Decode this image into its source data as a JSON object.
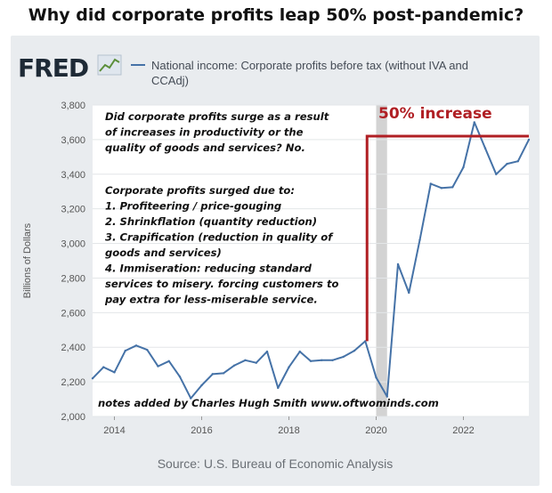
{
  "title": "Why did corporate profits leap 50% post-pandemic?",
  "fred": {
    "logo": "FRED",
    "logo_icon": "line-chart-icon",
    "legend_line1": "National income: Corporate profits before tax (without IVA and",
    "legend_line2": "CCAdj)",
    "series_color": "#4572a7"
  },
  "source": "Source: U.S. Bureau of Economic Analysis",
  "annotations": {
    "question": [
      "Did corporate profits surge as a result",
      "of increases in productivity or the",
      "quality of goods and services? No."
    ],
    "reasons": [
      "Corporate profits surged due to:",
      "1. Profiteering / price-gouging",
      "2. Shrinkflation (quantity reduction)",
      "3. Crapification (reduction in quality of",
      "goods and services)",
      "4. Immiseration: reducing standard",
      "services to misery. forcing customers to",
      "pay extra for less-miserable service."
    ],
    "credit": "notes added by Charles Hugh Smith  www.oftwominds.com",
    "increase_label": "50% increase",
    "increase_color": "#b01f24",
    "increase_from": 2435,
    "increase_to": 3620,
    "increase_from_x": 2019.75,
    "recession_start": 2020.0,
    "recession_end": 2020.25
  },
  "chart_data": {
    "type": "line",
    "title": "",
    "xlabel": "",
    "ylabel": "Billions of Dollars",
    "ylim": [
      2000,
      3800
    ],
    "xlim": [
      2013.5,
      2023.5
    ],
    "yticks": [
      "2,000",
      "2,200",
      "2,400",
      "2,600",
      "2,800",
      "3,000",
      "3,200",
      "3,400",
      "3,600",
      "3,800"
    ],
    "ytick_values": [
      2000,
      2200,
      2400,
      2600,
      2800,
      3000,
      3200,
      3400,
      3600,
      3800
    ],
    "xticks": [
      "2014",
      "2016",
      "2018",
      "2020",
      "2022"
    ],
    "xtick_values": [
      2014,
      2016,
      2018,
      2020,
      2022
    ],
    "grid": true,
    "series": [
      {
        "name": "National income: Corporate profits before tax (without IVA and CCAdj)",
        "x": [
          2013.5,
          2013.75,
          2014.0,
          2014.25,
          2014.5,
          2014.75,
          2015.0,
          2015.25,
          2015.5,
          2015.75,
          2016.0,
          2016.25,
          2016.5,
          2016.75,
          2017.0,
          2017.25,
          2017.5,
          2017.75,
          2018.0,
          2018.25,
          2018.5,
          2018.75,
          2019.0,
          2019.25,
          2019.5,
          2019.75,
          2020.0,
          2020.25,
          2020.5,
          2020.75,
          2021.0,
          2021.25,
          2021.5,
          2021.75,
          2022.0,
          2022.25,
          2022.5,
          2022.75,
          2023.0,
          2023.25,
          2023.5
        ],
        "values": [
          2220,
          2285,
          2255,
          2380,
          2410,
          2385,
          2290,
          2320,
          2230,
          2105,
          2180,
          2245,
          2250,
          2295,
          2325,
          2310,
          2375,
          2165,
          2285,
          2375,
          2320,
          2325,
          2325,
          2345,
          2380,
          2435,
          2225,
          2115,
          2880,
          2715,
          3020,
          3345,
          3320,
          3325,
          3440,
          3700,
          3550,
          3400,
          3460,
          3475,
          3600
        ]
      }
    ]
  }
}
